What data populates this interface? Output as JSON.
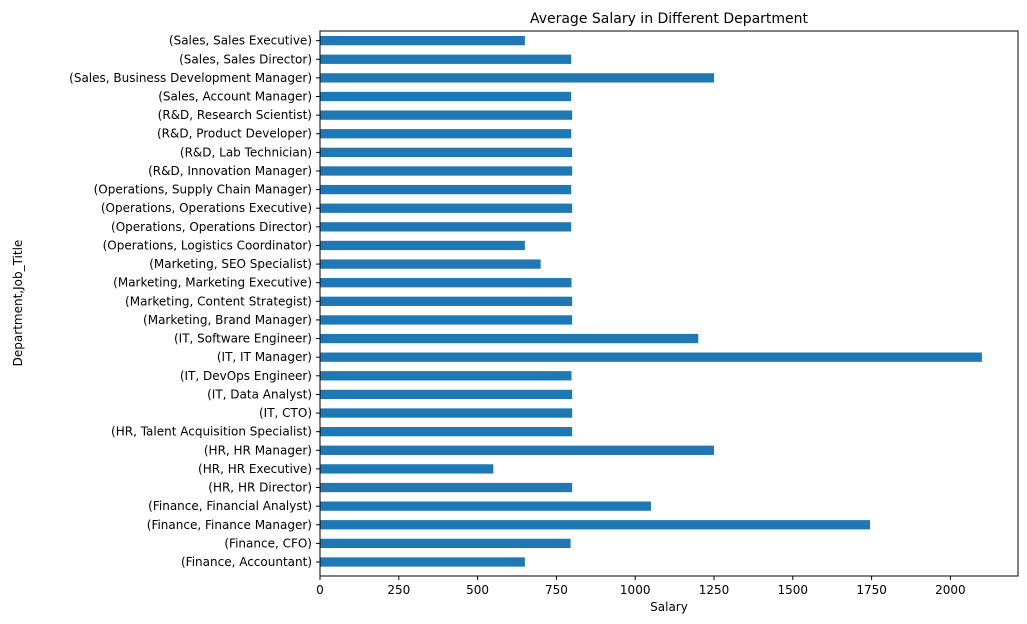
{
  "chart_data": {
    "type": "bar",
    "orientation": "horizontal",
    "title": "Average Salary in Different Department",
    "xlabel": "Salary",
    "ylabel": "Department,Job_Title",
    "xlim": [
      0,
      2200
    ],
    "xticks": [
      0,
      250,
      500,
      750,
      1000,
      1250,
      1500,
      1750,
      2000
    ],
    "grid": false,
    "bar_color": "#1f77b4",
    "categories": [
      "(Finance, Accountant)",
      "(Finance, CFO)",
      "(Finance, Finance Manager)",
      "(Finance, Financial Analyst)",
      "(HR, HR Director)",
      "(HR, HR Executive)",
      "(HR, HR Manager)",
      "(HR, Talent Acquisition Specialist)",
      "(IT, CTO)",
      "(IT, Data Analyst)",
      "(IT, DevOps Engineer)",
      "(IT, IT Manager)",
      "(IT, Software Engineer)",
      "(Marketing, Brand Manager)",
      "(Marketing, Content Strategist)",
      "(Marketing, Marketing Executive)",
      "(Marketing, SEO Specialist)",
      "(Operations, Logistics Coordinator)",
      "(Operations, Operations Director)",
      "(Operations, Operations Executive)",
      "(Operations, Supply Chain Manager)",
      "(R&D, Innovation Manager)",
      "(R&D, Lab Technician)",
      "(R&D, Product Developer)",
      "(R&D, Research Scientist)",
      "(Sales, Account Manager)",
      "(Sales, Business Development Manager)",
      "(Sales, Sales Director)",
      "(Sales, Sales Executive)"
    ],
    "values": [
      650,
      795,
      1745,
      1050,
      800,
      550,
      1250,
      800,
      800,
      800,
      798,
      2100,
      1200,
      800,
      800,
      798,
      700,
      650,
      797,
      800,
      797,
      800,
      800,
      797,
      800,
      797,
      1250,
      797,
      650
    ]
  }
}
